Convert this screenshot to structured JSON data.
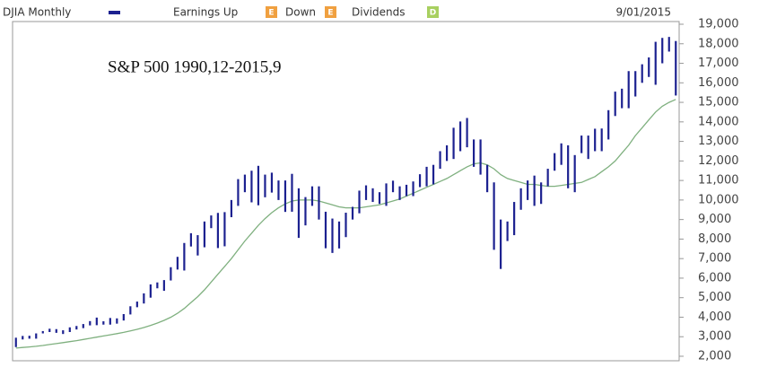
{
  "chart_data": {
    "type": "hilo",
    "date": "9/01/2015",
    "annotation": "S&P 500 1990,12-2015,9",
    "legend_items": [
      {
        "name": "Earnings Up",
        "marker": "E",
        "color": "#f0a040"
      },
      {
        "name": "Down",
        "marker": "E",
        "color": "#f0a040"
      },
      {
        "name": "Dividends",
        "marker": "D",
        "color": "#a8d060"
      }
    ],
    "categories": [
      null,
      null,
      null,
      null,
      null,
      null,
      null,
      null,
      null,
      null,
      null,
      null,
      null,
      null,
      null,
      null,
      null,
      null,
      null,
      null,
      null,
      null,
      null,
      null,
      null,
      null,
      null,
      null,
      null,
      null,
      null,
      null,
      null,
      null,
      null,
      null,
      null,
      null,
      null,
      null,
      null,
      null,
      null,
      null,
      null,
      null,
      null,
      null,
      null,
      null,
      null,
      null,
      null,
      null,
      null,
      null,
      null,
      null,
      null,
      null,
      null,
      null,
      null,
      null,
      null,
      null,
      null,
      null,
      null,
      null,
      null,
      null,
      null,
      null,
      null,
      null,
      null,
      null,
      null,
      null,
      null,
      null,
      null,
      null,
      null,
      null,
      null,
      null,
      null,
      null,
      null,
      null,
      null,
      null,
      null,
      null,
      null,
      null,
      null
    ],
    "series": [
      {
        "name": "DJIA Monthly",
        "color": "#1c2190",
        "high": [
          2950,
          3040,
          3050,
          3170,
          3290,
          3410,
          3390,
          3330,
          3480,
          3550,
          3650,
          3800,
          3980,
          3790,
          3960,
          3940,
          4160,
          4560,
          4800,
          5220,
          5680,
          5780,
          5900,
          6560,
          7090,
          7800,
          8300,
          8200,
          8900,
          9210,
          9340,
          9380,
          10000,
          11070,
          11300,
          11500,
          11750,
          11300,
          11400,
          11000,
          11000,
          11340,
          10600,
          10150,
          10700,
          10700,
          9400,
          9050,
          8900,
          9350,
          9650,
          10480,
          10750,
          10600,
          10400,
          10850,
          10990,
          10700,
          10780,
          10950,
          11320,
          11700,
          11800,
          12500,
          12800,
          13700,
          14020,
          14200,
          13100,
          13100,
          11800,
          10900,
          9000,
          8900,
          9900,
          10600,
          11000,
          11250,
          10900,
          11600,
          12400,
          12900,
          12800,
          12300,
          13300,
          13300,
          13650,
          13660,
          14600,
          15550,
          15700,
          16600,
          16600,
          16950,
          17300,
          18100,
          18300,
          18350,
          18140
        ],
        "low": [
          2470,
          2860,
          2900,
          2900,
          3170,
          3240,
          3200,
          3140,
          3240,
          3370,
          3440,
          3580,
          3590,
          3620,
          3620,
          3670,
          3830,
          4140,
          4510,
          4700,
          5000,
          5480,
          5350,
          5880,
          6440,
          6390,
          7620,
          7160,
          7580,
          8560,
          7540,
          7630,
          9120,
          9700,
          10400,
          9880,
          9730,
          10140,
          10380,
          10000,
          9390,
          9400,
          8060,
          8700,
          9700,
          9000,
          7530,
          7290,
          7520,
          8100,
          9000,
          9320,
          10000,
          9900,
          9800,
          9700,
          10400,
          10000,
          10200,
          10200,
          10660,
          10700,
          10800,
          11600,
          12000,
          12100,
          12500,
          12700,
          11700,
          11300,
          10400,
          7450,
          6470,
          7900,
          8200,
          9500,
          10000,
          9700,
          9800,
          10700,
          11500,
          11800,
          10600,
          10400,
          12400,
          12100,
          12500,
          12500,
          13100,
          14300,
          14700,
          14700,
          15300,
          16000,
          16300,
          15900,
          17000,
          17600,
          15350
        ]
      }
    ],
    "moving_average": {
      "color": "#7fb07f",
      "values": [
        2420,
        2450,
        2480,
        2510,
        2550,
        2600,
        2650,
        2700,
        2750,
        2800,
        2860,
        2920,
        2980,
        3040,
        3100,
        3160,
        3220,
        3300,
        3380,
        3470,
        3580,
        3700,
        3840,
        4000,
        4200,
        4450,
        4750,
        5050,
        5400,
        5800,
        6200,
        6600,
        7000,
        7450,
        7900,
        8300,
        8700,
        9050,
        9350,
        9600,
        9800,
        9950,
        10000,
        10000,
        10000,
        9950,
        9850,
        9750,
        9650,
        9600,
        9600,
        9600,
        9650,
        9700,
        9750,
        9850,
        9950,
        10050,
        10200,
        10350,
        10500,
        10650,
        10800,
        10950,
        11100,
        11300,
        11500,
        11700,
        11850,
        11900,
        11800,
        11600,
        11300,
        11100,
        11000,
        10900,
        10800,
        10800,
        10750,
        10700,
        10700,
        10750,
        10800,
        10850,
        10900,
        11050,
        11200,
        11450,
        11700,
        12000,
        12400,
        12800,
        13300,
        13700,
        14100,
        14500,
        14800,
        15000,
        15150
      ]
    },
    "ylim": [
      2000,
      19000
    ],
    "yticks": [
      {
        "value": 2000,
        "label": "2,000"
      },
      {
        "value": 3000,
        "label": "3,000"
      },
      {
        "value": 4000,
        "label": "4,000"
      },
      {
        "value": 5000,
        "label": "5,000"
      },
      {
        "value": 6000,
        "label": "6,000"
      },
      {
        "value": 7000,
        "label": "7,000"
      },
      {
        "value": 8000,
        "label": "8,000"
      },
      {
        "value": 9000,
        "label": "9,000"
      },
      {
        "value": 10000,
        "label": "10,000"
      },
      {
        "value": 11000,
        "label": "11,000"
      },
      {
        "value": 12000,
        "label": "12,000"
      },
      {
        "value": 13000,
        "label": "13,000"
      },
      {
        "value": 14000,
        "label": "14,000"
      },
      {
        "value": 15000,
        "label": "15,000"
      },
      {
        "value": 16000,
        "label": "16,000"
      },
      {
        "value": 17000,
        "label": "17,000"
      },
      {
        "value": 18000,
        "label": "18,000"
      },
      {
        "value": 19000,
        "label": "19,000"
      }
    ],
    "grid": false
  }
}
